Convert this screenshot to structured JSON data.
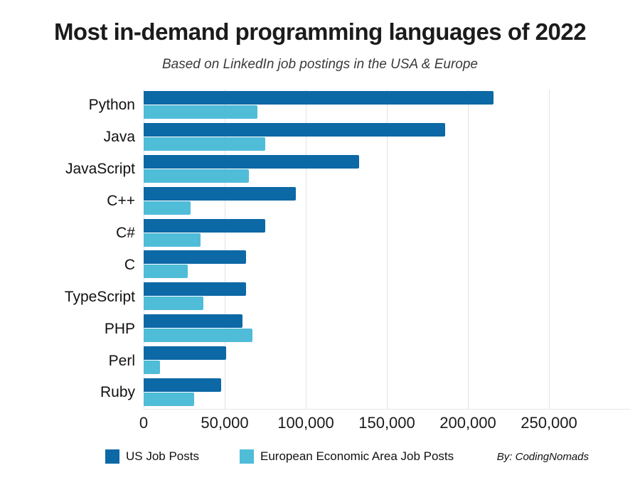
{
  "title": "Most in-demand programming languages of 2022",
  "subtitle": "Based on LinkedIn job postings in the USA & Europe",
  "credit": "By: CodingNomads",
  "colors": {
    "us_bar": "#0d68a6",
    "eea_bar": "#4fbcd8",
    "gridline": "#e2e2e2",
    "text": "#1a1a1a"
  },
  "chart_data": {
    "type": "bar",
    "orientation": "horizontal",
    "title": "Most in-demand programming languages of 2022",
    "subtitle": "Based on LinkedIn job postings in the USA & Europe",
    "categories": [
      "Python",
      "Java",
      "JavaScript",
      "C++",
      "C#",
      "C",
      "TypeScript",
      "PHP",
      "Perl",
      "Ruby"
    ],
    "series": [
      {
        "name": "US Job Posts",
        "color": "#0d68a6",
        "values": [
          216000,
          186000,
          133000,
          94000,
          75000,
          63000,
          63000,
          61000,
          51000,
          48000
        ]
      },
      {
        "name": "European Economic Area Job Posts",
        "color": "#4fbcd8",
        "values": [
          70000,
          75000,
          65000,
          29000,
          35000,
          27000,
          37000,
          67000,
          10000,
          31000
        ]
      }
    ],
    "xlabel": "",
    "ylabel": "",
    "xlim": [
      0,
      300000
    ],
    "xticks": [
      0,
      50000,
      100000,
      150000,
      200000,
      250000
    ],
    "xtick_labels": [
      "0",
      "50,000",
      "100,000",
      "150,000",
      "200,000",
      "250,000"
    ],
    "grid": true,
    "legend_position": "bottom"
  },
  "legend": {
    "items": [
      {
        "label": "US Job Posts",
        "color": "#0d68a6"
      },
      {
        "label": "European Economic Area Job Posts",
        "color": "#4fbcd8"
      }
    ]
  }
}
